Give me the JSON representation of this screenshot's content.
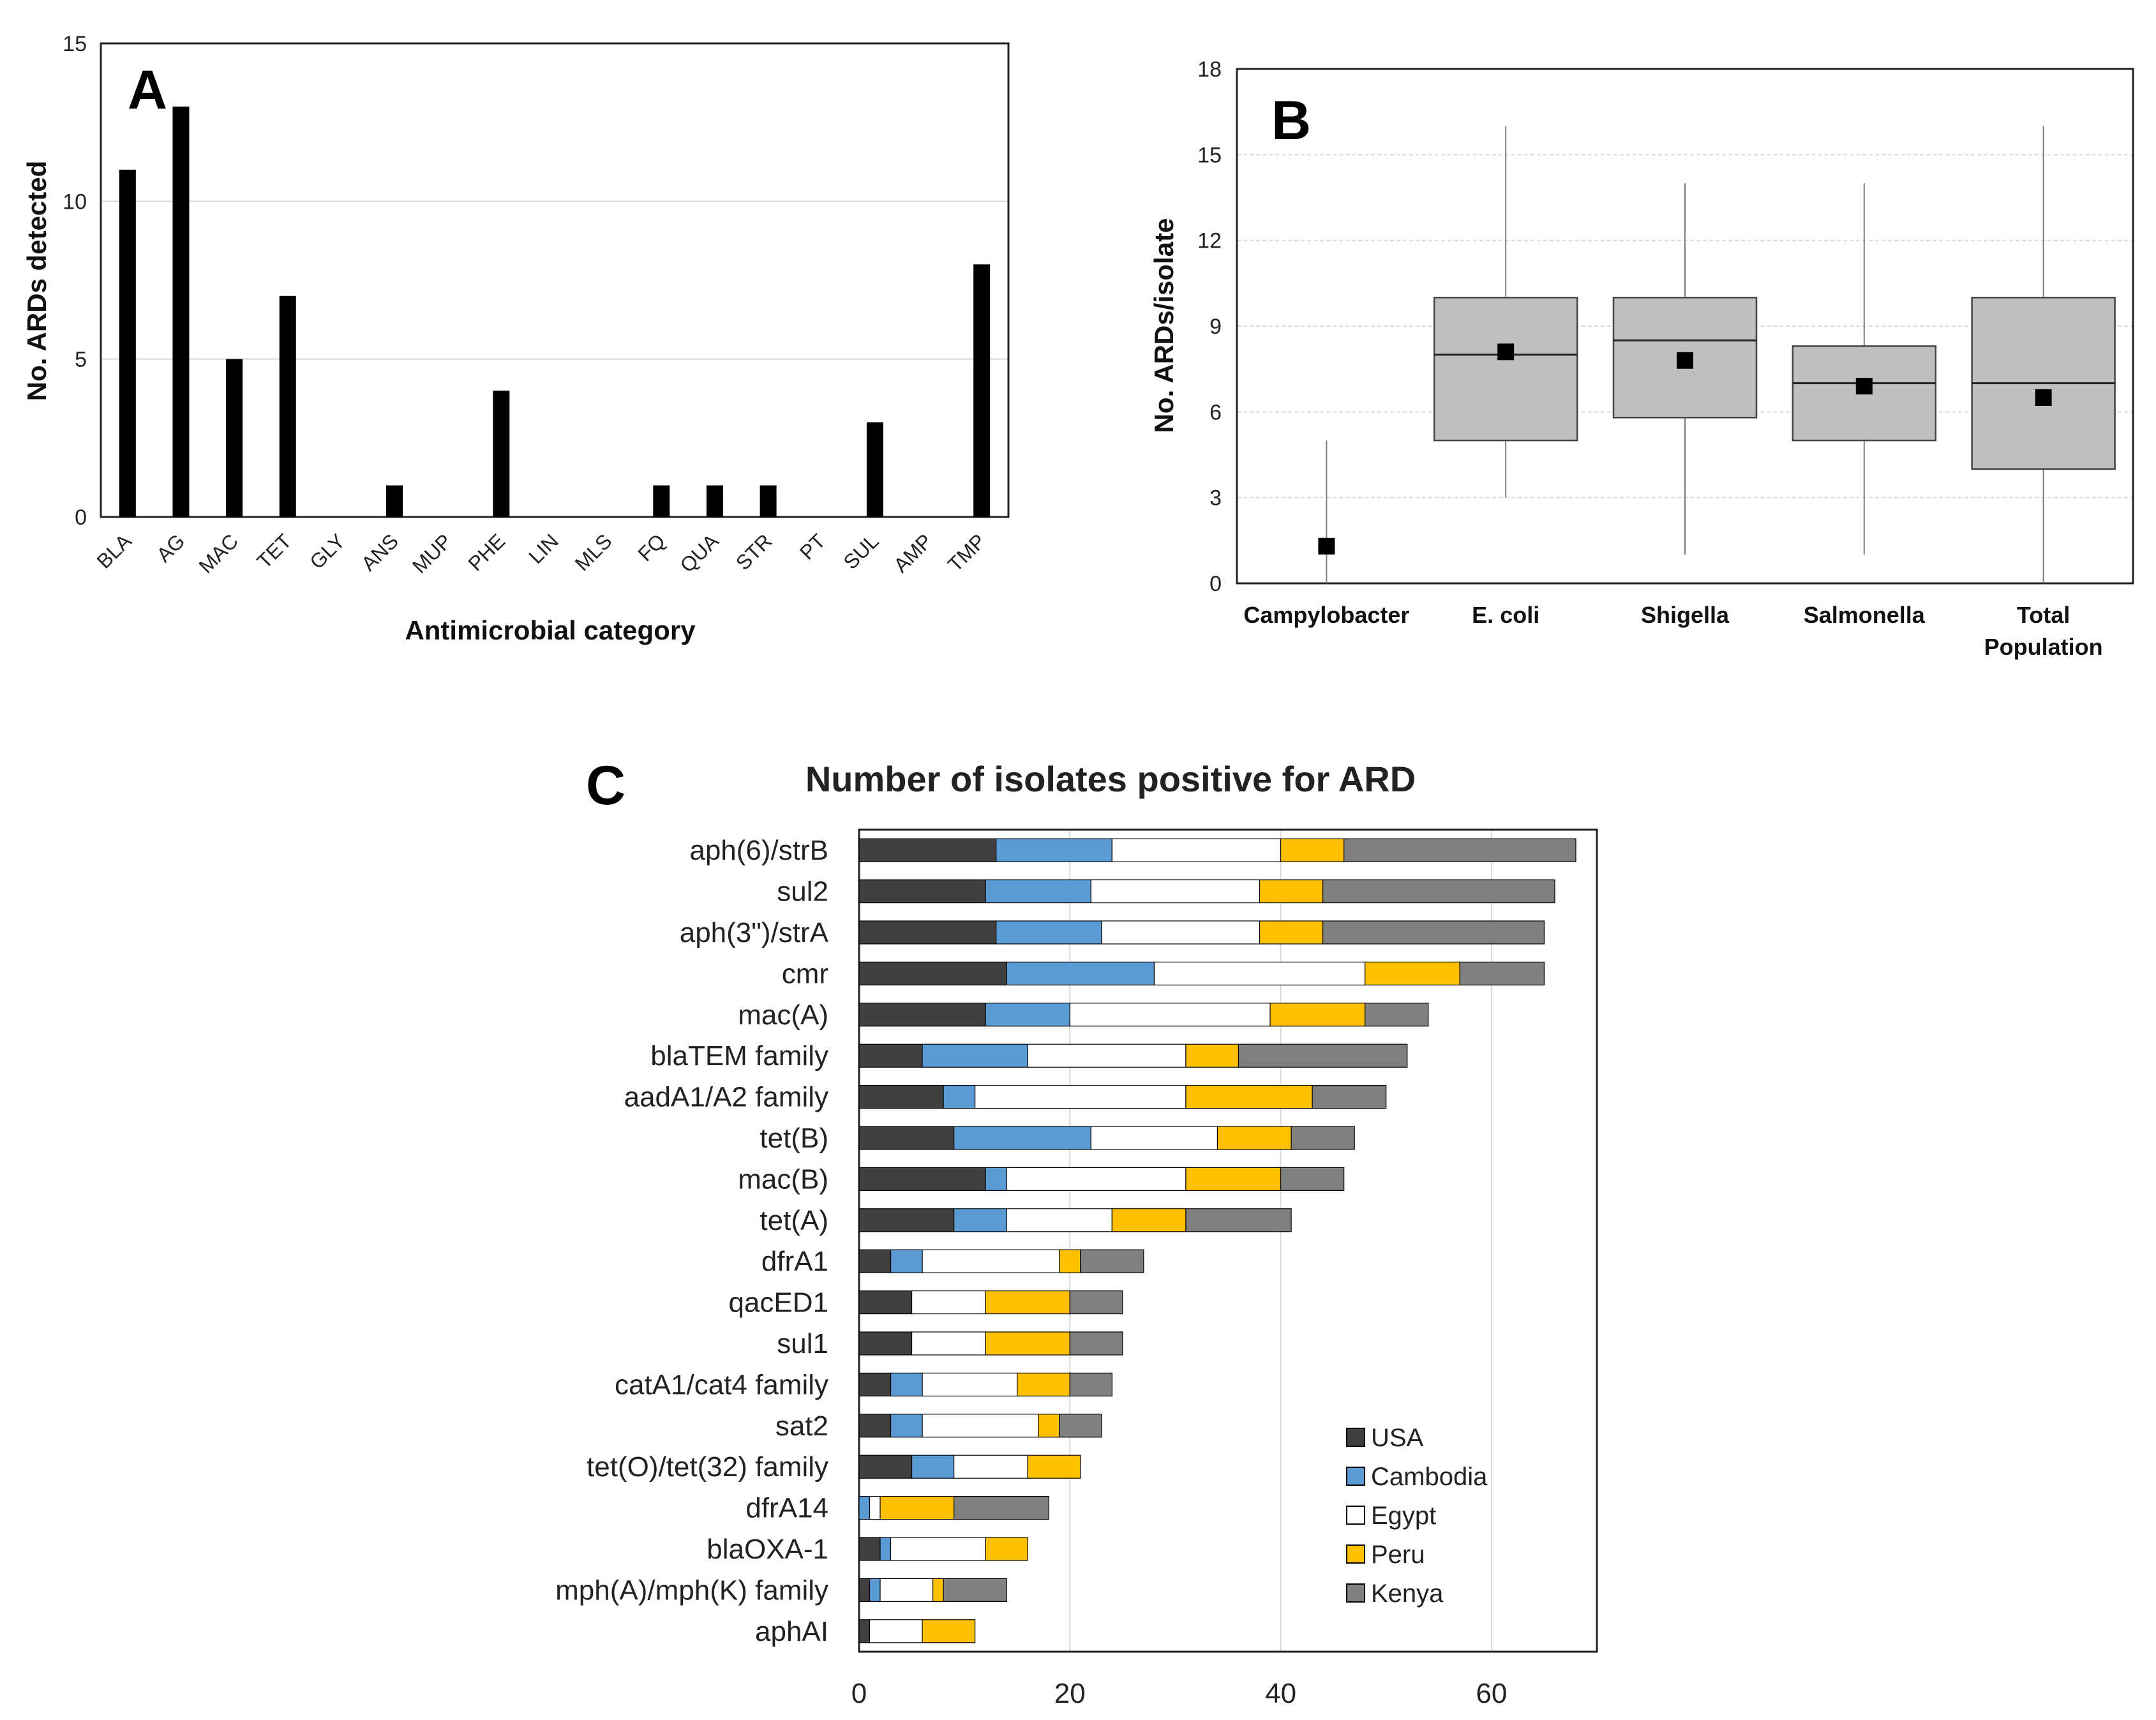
{
  "chart_data": [
    {
      "panel": "A",
      "type": "bar",
      "title": "",
      "xlabel": "Antimicrobial category",
      "ylabel": "No. ARDs detected",
      "ylim": [
        0,
        15
      ],
      "yticks": [
        "0",
        "5",
        "10",
        "15"
      ],
      "grid": true,
      "categories": [
        "BLA",
        "AG",
        "MAC",
        "TET",
        "GLY",
        "ANS",
        "MUP",
        "PHE",
        "LIN",
        "MLS",
        "FQ",
        "QUA",
        "STR",
        "PT",
        "SUL",
        "AMP",
        "TMP"
      ],
      "values": [
        11,
        13,
        5,
        7,
        0,
        1,
        0,
        4,
        0,
        0,
        1,
        1,
        1,
        0,
        3,
        0,
        8
      ],
      "colors": {
        "bar": "#000000",
        "grid": "#d9d9d9",
        "axis": "#333333"
      }
    },
    {
      "panel": "B",
      "type": "box",
      "title": "",
      "xlabel": "",
      "ylabel": "No. ARDs/isolate",
      "ylim": [
        0,
        18
      ],
      "yticks": [
        "0",
        "3",
        "6",
        "9",
        "12",
        "15",
        "18"
      ],
      "grid": true,
      "categories": [
        {
          "line1": "Campylobacter",
          "line2": ""
        },
        {
          "line1": "E. coli",
          "line2": ""
        },
        {
          "line1": "Shigella",
          "line2": ""
        },
        {
          "line1": "Salmonella",
          "line2": ""
        },
        {
          "line1": "Total",
          "line2": "Population"
        }
      ],
      "boxes": [
        {
          "min": 0,
          "q1": 0,
          "median": 0,
          "q3": 0,
          "max": 5,
          "mean": 1.3
        },
        {
          "min": 3,
          "q1": 5,
          "median": 8,
          "q3": 10,
          "max": 16,
          "mean": 8.1
        },
        {
          "min": 1,
          "q1": 5.8,
          "median": 8.5,
          "q3": 10,
          "max": 14,
          "mean": 7.8
        },
        {
          "min": 1,
          "q1": 5,
          "median": 7,
          "q3": 8.3,
          "max": 14,
          "mean": 6.9
        },
        {
          "min": 0,
          "q1": 4,
          "median": 7,
          "q3": 10,
          "max": 16,
          "mean": 6.5
        }
      ],
      "colors": {
        "box": "#bfbfbf",
        "mean": "#000000",
        "grid": "#d9d9d9",
        "whisker": "#7f7f7f"
      }
    },
    {
      "panel": "C",
      "type": "stacked-bar-horizontal",
      "title": "Number of  isolates positive for ARD",
      "xlabel": "",
      "ylabel": "",
      "xlim": [
        0,
        70
      ],
      "xticks": [
        0,
        20,
        40,
        60
      ],
      "grid": true,
      "categories": [
        "aph(6)/strB",
        "sul2",
        "aph(3\")/strA",
        "cmr",
        "mac(A)",
        "blaTEM family",
        "aadA1/A2 family",
        "tet(B)",
        "mac(B)",
        "tet(A)",
        "dfrA1",
        "qacED1",
        "sul1",
        "catA1/cat4 family",
        "sat2",
        "tet(O)/tet(32) family",
        "dfrA14",
        "blaOXA-1",
        "mph(A)/mph(K) family",
        "aphAI"
      ],
      "series": [
        {
          "name": "USA",
          "color": "#404040",
          "values": [
            13,
            12,
            13,
            14,
            12,
            6,
            8,
            9,
            12,
            9,
            3,
            5,
            5,
            3,
            3,
            5,
            0,
            2,
            1,
            1
          ]
        },
        {
          "name": "Cambodia",
          "color": "#5b9bd5",
          "values": [
            11,
            10,
            10,
            14,
            8,
            10,
            3,
            13,
            2,
            5,
            3,
            0,
            0,
            3,
            3,
            4,
            1,
            1,
            1,
            0
          ]
        },
        {
          "name": "Egypt",
          "color": "#ffffff",
          "values": [
            16,
            16,
            15,
            20,
            19,
            15,
            20,
            12,
            17,
            10,
            13,
            7,
            7,
            9,
            11,
            7,
            1,
            9,
            5,
            5
          ]
        },
        {
          "name": "Peru",
          "color": "#ffc000",
          "values": [
            6,
            6,
            6,
            9,
            9,
            5,
            12,
            7,
            9,
            7,
            2,
            8,
            8,
            5,
            2,
            5,
            7,
            4,
            1,
            5
          ]
        },
        {
          "name": "Kenya",
          "color": "#808080",
          "values": [
            22,
            22,
            21,
            8,
            6,
            16,
            7,
            6,
            6,
            10,
            6,
            5,
            5,
            4,
            4,
            0,
            9,
            0,
            6,
            0
          ]
        }
      ],
      "legend": "bottom-right",
      "colors": {
        "edge": "#000000",
        "grid": "#d9d9d9"
      }
    }
  ],
  "panels": {
    "a": "A",
    "b": "B",
    "c": "C"
  }
}
